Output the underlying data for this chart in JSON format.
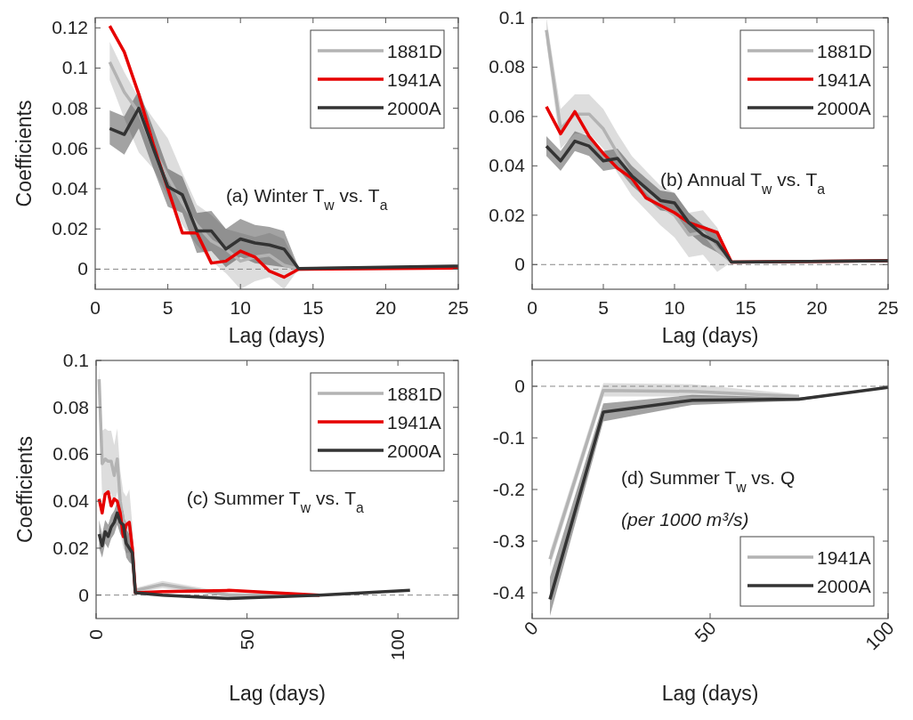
{
  "chart_data": [
    {
      "type": "line",
      "xlabel": "Lag (days)",
      "ylabel": "Coefficients",
      "xlim": [
        0,
        25
      ],
      "xticks": [
        0,
        5,
        10,
        15,
        20,
        25
      ],
      "ylim": [
        -0.01,
        0.125
      ],
      "yticks": [
        0,
        0.02,
        0.04,
        0.06,
        0.08,
        0.1,
        0.12
      ],
      "legend": "top right",
      "annotations": [
        "(a) Winter T$_{w}$ vs. T$_{a}$"
      ],
      "ref_lines": [
        {
          "axis": "y",
          "value": 0,
          "color": "#888888",
          "line_style": "dashed"
        }
      ],
      "series": [
        {
          "name": "1881D",
          "color": "#b3b3b3",
          "x": [
            1,
            2,
            3,
            4,
            5,
            6,
            7,
            8,
            9,
            10,
            11,
            12,
            13,
            14,
            25
          ],
          "values": [
            0.103,
            0.088,
            0.078,
            0.06,
            0.046,
            0.033,
            0.022,
            0.014,
            0.01,
            0.004,
            0.006,
            0.007,
            0.002,
            0,
            0.001
          ],
          "lower": [
            0.094,
            0.075,
            0.058,
            0.05,
            0.036,
            0.022,
            0.012,
            0.004,
            -0.002,
            -0.01,
            -0.006,
            -0.004,
            -0.01,
            0,
            0.001
          ],
          "upper": [
            0.113,
            0.098,
            0.085,
            0.075,
            0.065,
            0.048,
            0.032,
            0.027,
            0.02,
            0.018,
            0.016,
            0.018,
            0.015,
            0,
            0.001
          ]
        },
        {
          "name": "1941A",
          "color": "#e60000",
          "x": [
            1,
            2,
            3,
            4,
            5,
            6,
            7,
            8,
            9,
            10,
            11,
            12,
            13,
            14,
            25
          ],
          "values": [
            0.121,
            0.108,
            0.087,
            0.062,
            0.04,
            0.018,
            0.018,
            0.003,
            0.004,
            0.009,
            0.006,
            -0.001,
            -0.004,
            0,
            0.0005
          ]
        },
        {
          "name": "2000A",
          "color": "#333333",
          "x": [
            1,
            2,
            3,
            4,
            5,
            6,
            7,
            8,
            9,
            10,
            11,
            12,
            13,
            14,
            25
          ],
          "values": [
            0.07,
            0.067,
            0.08,
            0.06,
            0.041,
            0.037,
            0.019,
            0.019,
            0.01,
            0.015,
            0.013,
            0.012,
            0.01,
            0.0003,
            0.0015
          ],
          "lower": [
            0.062,
            0.057,
            0.07,
            0.05,
            0.031,
            0.028,
            0.008,
            0.009,
            0.001,
            0.006,
            0.003,
            0.002,
            0.001,
            0,
            0.001
          ],
          "upper": [
            0.079,
            0.076,
            0.089,
            0.07,
            0.05,
            0.046,
            0.028,
            0.029,
            0.02,
            0.025,
            0.022,
            0.021,
            0.019,
            0.001,
            0.002
          ]
        }
      ]
    },
    {
      "type": "line",
      "xlabel": "Lag (days)",
      "xlim": [
        0,
        25
      ],
      "xticks": [
        0,
        5,
        10,
        15,
        20,
        25
      ],
      "ylim": [
        -0.01,
        0.1
      ],
      "yticks": [
        0,
        0.02,
        0.04,
        0.06,
        0.08,
        0.1
      ],
      "legend": "top right",
      "annotations": [
        "(b) Annual T$_{w}$ vs. T$_{a}$"
      ],
      "ref_lines": [
        {
          "axis": "y",
          "value": 0,
          "color": "#888888",
          "line_style": "dashed"
        }
      ],
      "series": [
        {
          "name": "1881D",
          "color": "#b3b3b3",
          "x": [
            1,
            2,
            3,
            4,
            5,
            6,
            7,
            8,
            9,
            10,
            11,
            12,
            13,
            14,
            25
          ],
          "values": [
            0.095,
            0.055,
            0.061,
            0.061,
            0.055,
            0.045,
            0.036,
            0.03,
            0.024,
            0.02,
            0.012,
            0.013,
            0.006,
            0.001,
            0.0015
          ],
          "lower": [
            0.09,
            0.047,
            0.053,
            0.053,
            0.047,
            0.037,
            0.028,
            0.022,
            0.016,
            0.011,
            0.003,
            0.004,
            -0.003,
            0.001,
            0.0015
          ],
          "upper": [
            0.1,
            0.063,
            0.069,
            0.069,
            0.063,
            0.053,
            0.044,
            0.038,
            0.032,
            0.029,
            0.021,
            0.022,
            0.015,
            0.001,
            0.0015
          ]
        },
        {
          "name": "1941A",
          "color": "#e60000",
          "x": [
            1,
            2,
            3,
            4,
            5,
            6,
            7,
            8,
            9,
            10,
            11,
            12,
            13,
            14,
            25
          ],
          "values": [
            0.064,
            0.053,
            0.062,
            0.052,
            0.045,
            0.039,
            0.035,
            0.027,
            0.024,
            0.021,
            0.017,
            0.015,
            0.013,
            0.001,
            0.0015
          ]
        },
        {
          "name": "2000A",
          "color": "#333333",
          "x": [
            1,
            2,
            3,
            4,
            5,
            6,
            7,
            8,
            9,
            10,
            11,
            12,
            13,
            14,
            25
          ],
          "values": [
            0.048,
            0.042,
            0.05,
            0.048,
            0.042,
            0.043,
            0.036,
            0.031,
            0.026,
            0.025,
            0.017,
            0.012,
            0.009,
            0.001,
            0.0015
          ],
          "lower": [
            0.044,
            0.038,
            0.046,
            0.044,
            0.038,
            0.039,
            0.032,
            0.027,
            0.022,
            0.021,
            0.013,
            0.008,
            0.005,
            0.001,
            0.0015
          ],
          "upper": [
            0.052,
            0.046,
            0.054,
            0.052,
            0.046,
            0.047,
            0.04,
            0.035,
            0.03,
            0.029,
            0.021,
            0.016,
            0.013,
            0.001,
            0.0015
          ]
        }
      ]
    },
    {
      "type": "line",
      "xlabel": "Lag (days)",
      "ylabel": "Coefficients",
      "xlim": [
        0,
        120
      ],
      "xticks": [
        0,
        50,
        100
      ],
      "ylim": [
        -0.01,
        0.1
      ],
      "yticks": [
        0,
        0.02,
        0.04,
        0.06,
        0.08,
        0.1
      ],
      "legend": "top right",
      "annotations": [
        "(c) Summer T$_{w}$ vs. T$_{a}$"
      ],
      "ref_lines": [
        {
          "axis": "y",
          "value": 0,
          "color": "#888888",
          "line_style": "dashed"
        }
      ],
      "series": [
        {
          "name": "1881D",
          "color": "#b3b3b3",
          "x": [
            1,
            2,
            3,
            4,
            5,
            6,
            7,
            8,
            9,
            10,
            11,
            12,
            13,
            22,
            44,
            74
          ],
          "values": [
            0.092,
            0.056,
            0.058,
            0.057,
            0.057,
            0.051,
            0.058,
            0.04,
            0.032,
            0.03,
            0.03,
            0.02,
            0.002,
            0.0045,
            0,
            0
          ],
          "lower": [
            0.08,
            0.042,
            0.044,
            0.043,
            0.043,
            0.038,
            0.044,
            0.027,
            0.02,
            0.018,
            0.018,
            0.01,
            0.001,
            0.003,
            -0.001,
            0
          ],
          "upper": [
            0.098,
            0.07,
            0.071,
            0.07,
            0.07,
            0.064,
            0.071,
            0.053,
            0.044,
            0.042,
            0.045,
            0.03,
            0.003,
            0.006,
            0.001,
            0
          ]
        },
        {
          "name": "1941A",
          "color": "#e60000",
          "x": [
            1,
            2,
            3,
            4,
            5,
            6,
            7,
            8,
            9,
            10,
            11,
            12,
            13,
            22,
            44,
            74
          ],
          "values": [
            0.041,
            0.035,
            0.043,
            0.044,
            0.038,
            0.041,
            0.04,
            0.035,
            0.025,
            0.03,
            0.031,
            0.02,
            0.001,
            0.0015,
            0.002,
            0
          ]
        },
        {
          "name": "2000A",
          "color": "#333333",
          "x": [
            1,
            2,
            3,
            4,
            5,
            6,
            7,
            8,
            9,
            10,
            11,
            12,
            13,
            22,
            44,
            74,
            104
          ],
          "values": [
            0.026,
            0.021,
            0.027,
            0.025,
            0.029,
            0.031,
            0.035,
            0.031,
            0.03,
            0.022,
            0.02,
            0.018,
            0.001,
            0,
            -0.0015,
            0,
            0.002
          ],
          "lower": [
            0.02,
            0.016,
            0.022,
            0.02,
            0.024,
            0.026,
            0.03,
            0.026,
            0.024,
            0.016,
            0.014,
            0.013,
            0.0005,
            -0.0005,
            -0.002,
            0,
            0.002
          ],
          "upper": [
            0.032,
            0.026,
            0.032,
            0.03,
            0.034,
            0.036,
            0.04,
            0.036,
            0.036,
            0.028,
            0.026,
            0.023,
            0.0015,
            0.0005,
            -0.001,
            0,
            0.002
          ]
        }
      ]
    },
    {
      "type": "line",
      "xlabel": "Lag (days)",
      "xlim": [
        0,
        100
      ],
      "xticks": [
        0,
        50,
        100
      ],
      "ylim": [
        -0.45,
        0.05
      ],
      "yticks": [
        -0.4,
        -0.3,
        -0.2,
        -0.1,
        0
      ],
      "legend": "bottom right",
      "annotations": [
        "(d) Summer T$_{w}$  vs. Q",
        "(per 1000 m³/s)"
      ],
      "ref_lines": [
        {
          "axis": "y",
          "value": 0,
          "color": "#888888",
          "line_style": "dashed"
        }
      ],
      "series": [
        {
          "name": "1941A",
          "color": "#b3b3b3",
          "x": [
            5,
            20,
            45,
            75
          ],
          "values": [
            -0.335,
            -0.008,
            -0.01,
            -0.02
          ],
          "lower": [
            -0.35,
            -0.02,
            -0.02,
            -0.022
          ],
          "upper": [
            -0.32,
            0.006,
            0.004,
            -0.016
          ]
        },
        {
          "name": "2000A",
          "color": "#333333",
          "x": [
            5,
            20,
            45,
            75,
            100
          ],
          "values": [
            -0.413,
            -0.05,
            -0.027,
            -0.025,
            -0.002
          ],
          "lower": [
            -0.445,
            -0.068,
            -0.036,
            -0.028,
            -0.002
          ],
          "upper": [
            -0.37,
            -0.033,
            -0.017,
            -0.022,
            -0.002
          ]
        }
      ]
    }
  ]
}
